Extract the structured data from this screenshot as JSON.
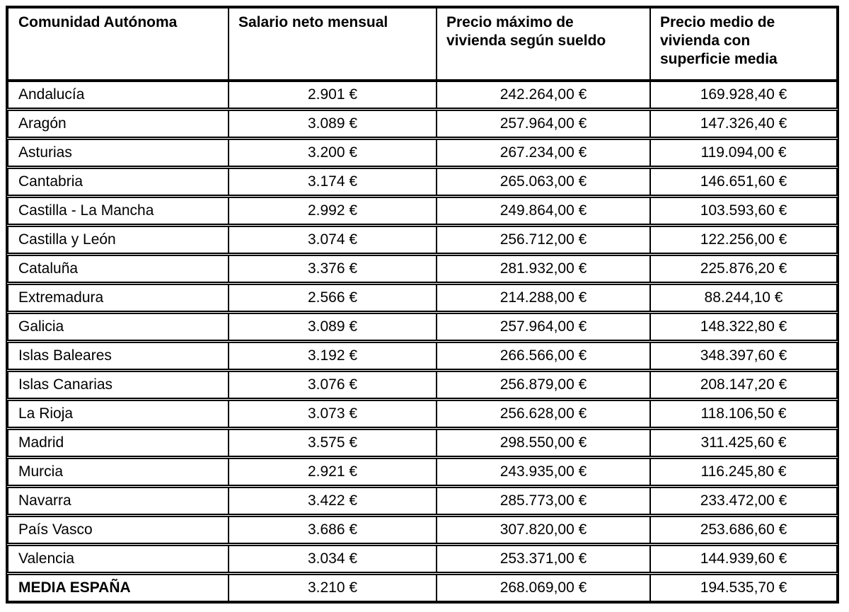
{
  "chart_data": {
    "type": "table",
    "columns": [
      "Comunidad Autónoma",
      "Salario neto mensual",
      "Precio máximo de\nvivienda según sueldo",
      "Precio medio de\nvivienda con\nsuperficie media"
    ],
    "rows": [
      [
        "Andalucía",
        "2.901 €",
        "242.264,00 €",
        "169.928,40 €"
      ],
      [
        "Aragón",
        "3.089 €",
        "257.964,00 €",
        "147.326,40 €"
      ],
      [
        "Asturias",
        "3.200 €",
        "267.234,00 €",
        "119.094,00 €"
      ],
      [
        "Cantabria",
        "3.174 €",
        "265.063,00 €",
        "146.651,60 €"
      ],
      [
        "Castilla - La Mancha",
        "2.992 €",
        "249.864,00 €",
        "103.593,60 €"
      ],
      [
        "Castilla y León",
        "3.074 €",
        "256.712,00 €",
        "122.256,00 €"
      ],
      [
        "Cataluña",
        "3.376 €",
        "281.932,00 €",
        "225.876,20 €"
      ],
      [
        "Extremadura",
        "2.566 €",
        "214.288,00 €",
        "88.244,10 €"
      ],
      [
        "Galicia",
        "3.089 €",
        "257.964,00 €",
        "148.322,80 €"
      ],
      [
        "Islas Baleares",
        "3.192 €",
        "266.566,00 €",
        "348.397,60 €"
      ],
      [
        "Islas Canarias",
        "3.076 €",
        "256.879,00 €",
        "208.147,20 €"
      ],
      [
        "La Rioja",
        "3.073 €",
        "256.628,00 €",
        "118.106,50 €"
      ],
      [
        "Madrid",
        "3.575 €",
        "298.550,00 €",
        "311.425,60 €"
      ],
      [
        "Murcia",
        "2.921 €",
        "243.935,00 €",
        "116.245,80 €"
      ],
      [
        "Navarra",
        "3.422 €",
        "285.773,00 €",
        "233.472,00 €"
      ],
      [
        "País Vasco",
        "3.686 €",
        "307.820,00 €",
        "253.686,60 €"
      ],
      [
        "Valencia",
        "3.034 €",
        "253.371,00 €",
        "144.939,60 €"
      ]
    ],
    "total_row": [
      "MEDIA ESPAÑA",
      "3.210 €",
      "268.069,00 €",
      "194.535,70 €"
    ],
    "layout": {
      "currency": "EUR",
      "grid": "all-borders",
      "header_bold": true,
      "total_label_bold": true
    },
    "colors": {
      "border": "#000000",
      "background": "#ffffff",
      "text": "#000000"
    }
  }
}
